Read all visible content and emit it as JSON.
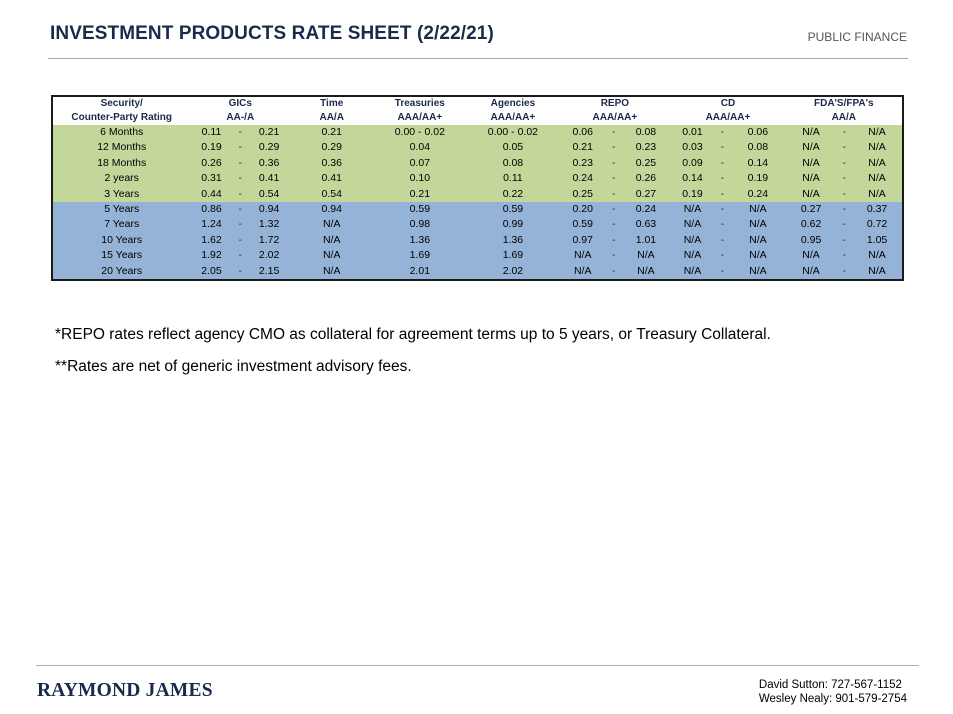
{
  "header": {
    "title": "INVESTMENT PRODUCTS RATE SHEET (2/22/21)",
    "department": "PUBLIC FINANCE"
  },
  "table": {
    "columns": [
      {
        "name": "Security/",
        "rating": "Counter-Party Rating"
      },
      {
        "name": "GICs",
        "rating": "AA-/A"
      },
      {
        "name": "Time",
        "rating": "AA/A"
      },
      {
        "name": "Treasuries",
        "rating": "AAA/AA+"
      },
      {
        "name": "Agencies",
        "rating": "AAA/AA+"
      },
      {
        "name": "REPO",
        "rating": "AAA/AA+"
      },
      {
        "name": "CD",
        "rating": "AAA/AA+"
      },
      {
        "name": "FDA'S/FPA's",
        "rating": "AA/A"
      }
    ],
    "rows": [
      {
        "term": "6 Months",
        "gic": [
          "0.11",
          "0.21"
        ],
        "time": "0.21",
        "treasuries": "0.00  -  0.02",
        "agencies": "0.00  -  0.02",
        "repo": [
          "0.06",
          "0.08"
        ],
        "cd": [
          "0.01",
          "0.06"
        ],
        "fda": [
          "N/A",
          "N/A"
        ],
        "band": "green"
      },
      {
        "term": "12 Months",
        "gic": [
          "0.19",
          "0.29"
        ],
        "time": "0.29",
        "treasuries": "0.04",
        "agencies": "0.05",
        "repo": [
          "0.21",
          "0.23"
        ],
        "cd": [
          "0.03",
          "0.08"
        ],
        "fda": [
          "N/A",
          "N/A"
        ],
        "band": "green"
      },
      {
        "term": "18 Months",
        "gic": [
          "0.26",
          "0.36"
        ],
        "time": "0.36",
        "treasuries": "0.07",
        "agencies": "0.08",
        "repo": [
          "0.23",
          "0.25"
        ],
        "cd": [
          "0.09",
          "0.14"
        ],
        "fda": [
          "N/A",
          "N/A"
        ],
        "band": "green"
      },
      {
        "term": "2 years",
        "gic": [
          "0.31",
          "0.41"
        ],
        "time": "0.41",
        "treasuries": "0.10",
        "agencies": "0.11",
        "repo": [
          "0.24",
          "0.26"
        ],
        "cd": [
          "0.14",
          "0.19"
        ],
        "fda": [
          "N/A",
          "N/A"
        ],
        "band": "green"
      },
      {
        "term": "3 Years",
        "gic": [
          "0.44",
          "0.54"
        ],
        "time": "0.54",
        "treasuries": "0.21",
        "agencies": "0.22",
        "repo": [
          "0.25",
          "0.27"
        ],
        "cd": [
          "0.19",
          "0.24"
        ],
        "fda": [
          "N/A",
          "N/A"
        ],
        "band": "green"
      },
      {
        "term": "5 Years",
        "gic": [
          "0.86",
          "0.94"
        ],
        "time": "0.94",
        "treasuries": "0.59",
        "agencies": "0.59",
        "repo": [
          "0.20",
          "0.24"
        ],
        "cd": [
          "N/A",
          "N/A"
        ],
        "fda": [
          "0.27",
          "0.37"
        ],
        "band": "blue"
      },
      {
        "term": "7 Years",
        "gic": [
          "1.24",
          "1.32"
        ],
        "time": "N/A",
        "treasuries": "0.98",
        "agencies": "0.99",
        "repo": [
          "0.59",
          "0.63"
        ],
        "cd": [
          "N/A",
          "N/A"
        ],
        "fda": [
          "0.62",
          "0.72"
        ],
        "band": "blue"
      },
      {
        "term": "10 Years",
        "gic": [
          "1.62",
          "1.72"
        ],
        "time": "N/A",
        "treasuries": "1.36",
        "agencies": "1.36",
        "repo": [
          "0.97",
          "1.01"
        ],
        "cd": [
          "N/A",
          "N/A"
        ],
        "fda": [
          "0.95",
          "1.05"
        ],
        "band": "blue"
      },
      {
        "term": "15 Years",
        "gic": [
          "1.92",
          "2.02"
        ],
        "time": "N/A",
        "treasuries": "1.69",
        "agencies": "1.69",
        "repo": [
          "N/A",
          "N/A"
        ],
        "cd": [
          "N/A",
          "N/A"
        ],
        "fda": [
          "N/A",
          "N/A"
        ],
        "band": "blue"
      },
      {
        "term": "20 Years",
        "gic": [
          "2.05",
          "2.15"
        ],
        "time": "N/A",
        "treasuries": "2.01",
        "agencies": "2.02",
        "repo": [
          "N/A",
          "N/A"
        ],
        "cd": [
          "N/A",
          "N/A"
        ],
        "fda": [
          "N/A",
          "N/A"
        ],
        "band": "blue"
      }
    ],
    "range_separator": "-",
    "colors": {
      "green_band": "#c4d79b",
      "blue_band": "#95b3d7",
      "header_text": "#1b2a4a"
    }
  },
  "notes": [
    "*REPO rates reflect agency CMO as collateral for agreement terms up to 5 years, or Treasury Collateral.",
    "**Rates are net of generic investment advisory fees."
  ],
  "footer": {
    "logo": "RAYMOND JAMES",
    "contacts": [
      "David  Sutton: 727-567-1152",
      "Wesley Nealy: 901-579-2754"
    ]
  }
}
